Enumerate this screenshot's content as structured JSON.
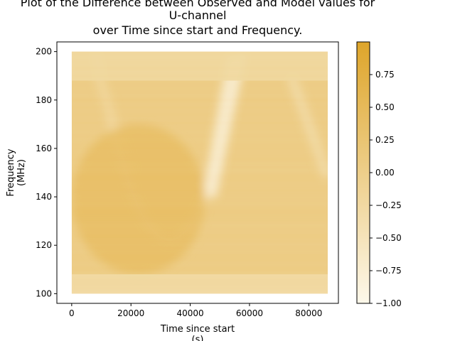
{
  "chart_data": {
    "type": "heatmap",
    "title_lines": [
      "Plot of the Difference between Observed and Model values for",
      "U-channel",
      "over Time since start and Frequency."
    ],
    "xlabel_lines": [
      "Time since start",
      "(s)"
    ],
    "ylabel_lines": [
      "Frequency",
      "(MHz)"
    ],
    "xlim": [
      -5000,
      90000
    ],
    "ylim": [
      96,
      204
    ],
    "x_data_range": [
      0,
      86400
    ],
    "y_data_range": [
      100,
      200
    ],
    "x_ticks": [
      0,
      20000,
      40000,
      60000,
      80000
    ],
    "x_tick_labels": [
      "0",
      "20000",
      "40000",
      "60000",
      "80000"
    ],
    "y_ticks": [
      100,
      120,
      140,
      160,
      180,
      200
    ],
    "y_tick_labels": [
      "100",
      "120",
      "140",
      "160",
      "180",
      "200"
    ],
    "colorbar": {
      "range": [
        -1.0,
        1.0
      ],
      "ticks": [
        0.75,
        0.5,
        0.25,
        0.0,
        -0.25,
        -0.5,
        -0.75,
        -1.0
      ],
      "tick_labels": [
        "0.75",
        "0.50",
        "0.25",
        "0.00",
        "−0.25",
        "−0.50",
        "−0.75",
        "−1.00"
      ],
      "colors": [
        "#fdf8ea",
        "#dea52a"
      ]
    },
    "grid": false,
    "features": [
      {
        "name": "parabolic-arc",
        "x_vertex": 33000,
        "y_vertex": 122,
        "value": -0.45,
        "x_right_at_top": 58000
      },
      {
        "name": "bright-streak",
        "x_start": 44000,
        "x_end": 58500,
        "y_start": 140,
        "y_end": 198,
        "value": -0.8
      },
      {
        "name": "right-arc",
        "x_start": 74000,
        "x_end": 86400,
        "y_start": 190,
        "y_end": 148,
        "value": -0.35
      },
      {
        "name": "left-arc",
        "x_start": 9000,
        "x_end": 20000,
        "y_start": 190,
        "y_end": 150,
        "value": -0.15
      },
      {
        "name": "low-band",
        "y_start": 100,
        "y_end": 108,
        "value": -0.3
      },
      {
        "name": "top-band",
        "y_start": 188,
        "y_end": 200,
        "value": -0.25
      },
      {
        "name": "dark-region",
        "x_start": 0,
        "x_end": 45000,
        "y_start": 108,
        "y_end": 170,
        "value": 0.45
      }
    ]
  }
}
